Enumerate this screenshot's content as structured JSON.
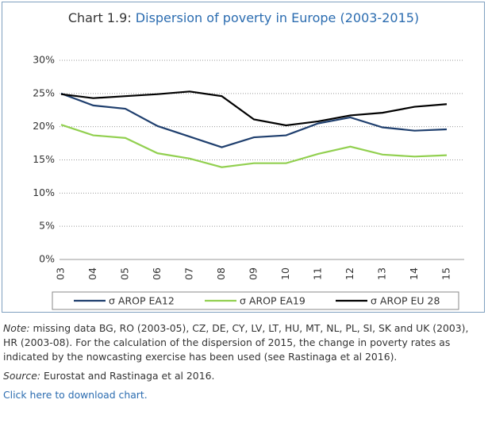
{
  "chart_data": {
    "type": "line",
    "title_label": "Chart 1.9:",
    "title": "Dispersion of poverty in Europe (2003-2015)",
    "categories": [
      "03",
      "04",
      "05",
      "06",
      "07",
      "08",
      "09",
      "10",
      "11",
      "12",
      "13",
      "14",
      "15"
    ],
    "series": [
      {
        "name": "σ AROP EA12",
        "color": "#1f3f6e",
        "values": [
          25.0,
          23.2,
          22.7,
          20.1,
          18.5,
          16.9,
          18.4,
          18.7,
          20.5,
          21.4,
          19.9,
          19.4,
          19.6
        ]
      },
      {
        "name": "σ AROP EA19",
        "color": "#92d050",
        "values": [
          20.3,
          18.7,
          18.3,
          16.0,
          15.2,
          13.9,
          14.5,
          14.5,
          15.9,
          17.0,
          15.8,
          15.5,
          15.7
        ]
      },
      {
        "name": "σ AROP EU 28",
        "color": "#000000",
        "values": [
          24.9,
          24.3,
          24.6,
          24.9,
          25.3,
          24.6,
          21.1,
          20.2,
          20.8,
          21.7,
          22.1,
          23.0,
          23.4
        ]
      }
    ],
    "ylim": [
      0,
      30
    ],
    "yticks": [
      {
        "value": 0,
        "label": "0%"
      },
      {
        "value": 5,
        "label": "5%"
      },
      {
        "value": 10,
        "label": "10%"
      },
      {
        "value": 15,
        "label": "15%"
      },
      {
        "value": 20,
        "label": "20%"
      },
      {
        "value": 25,
        "label": "25%"
      },
      {
        "value": 30,
        "label": "30%"
      }
    ],
    "grid": true
  },
  "notes": {
    "note_label": "Note:",
    "note": "missing data BG, RO (2003-05), CZ, DE, CY, LV, LT, HU, MT, NL, PL, SI, SK and UK (2003), HR (2003-08).  For the calculation of the dispersion of 2015, the change in poverty rates as indicated by the nowcasting exercise has been used (see Rastinaga et al 2016).",
    "source_label": "Source:",
    "source": "Eurostat and Rastinaga et al 2016.",
    "link": "Click here to download chart."
  }
}
